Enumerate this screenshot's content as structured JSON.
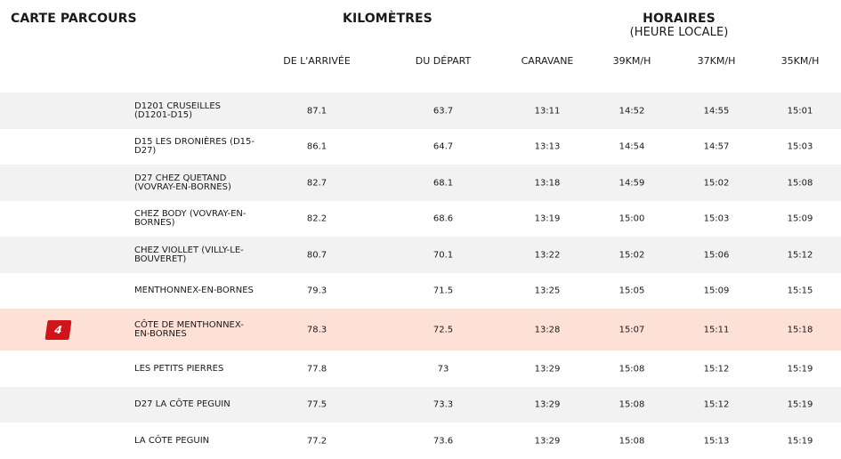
{
  "headers": {
    "carte": "CARTE PARCOURS",
    "kilometres": "KILOMÈTRES",
    "horaires": "HORAIRES",
    "horaires_sub": "(HEURE LOCALE)"
  },
  "columns": {
    "arrivee": "DE L'ARRIVÉE",
    "depart": "DU DÉPART",
    "caravane": "CARAVANE",
    "s39": "39KM/H",
    "s37": "37KM/H",
    "s35": "35KM/H"
  },
  "rows": [
    {
      "badge": "",
      "name": "D1201 CRUSEILLES (D1201-D15)",
      "arrivee": "87.1",
      "depart": "63.7",
      "caravane": "13:11",
      "s39": "14:52",
      "s37": "14:55",
      "s35": "15:01"
    },
    {
      "badge": "",
      "name": "D15 LES DRONIÈRES (D15-D27)",
      "arrivee": "86.1",
      "depart": "64.7",
      "caravane": "13:13",
      "s39": "14:54",
      "s37": "14:57",
      "s35": "15:03"
    },
    {
      "badge": "",
      "name": "D27 CHEZ QUETAND (VOVRAY-EN-BORNES)",
      "arrivee": "82.7",
      "depart": "68.1",
      "caravane": "13:18",
      "s39": "14:59",
      "s37": "15:02",
      "s35": "15:08"
    },
    {
      "badge": "",
      "name": "CHEZ BODY (VOVRAY-EN-BORNES)",
      "arrivee": "82.2",
      "depart": "68.6",
      "caravane": "13:19",
      "s39": "15:00",
      "s37": "15:03",
      "s35": "15:09"
    },
    {
      "badge": "",
      "name": "CHEZ VIOLLET (VILLY-LE-BOUVERET)",
      "arrivee": "80.7",
      "depart": "70.1",
      "caravane": "13:22",
      "s39": "15:02",
      "s37": "15:06",
      "s35": "15:12"
    },
    {
      "badge": "",
      "name": "MENTHONNEX-EN-BORNES",
      "arrivee": "79.3",
      "depart": "71.5",
      "caravane": "13:25",
      "s39": "15:05",
      "s37": "15:09",
      "s35": "15:15"
    },
    {
      "badge": "4",
      "name": "CÔTE DE MENTHONNEX-EN-BORNES",
      "arrivee": "78.3",
      "depart": "72.5",
      "caravane": "13:28",
      "s39": "15:07",
      "s37": "15:11",
      "s35": "15:18"
    },
    {
      "badge": "",
      "name": "LES PETITS PIERRES",
      "arrivee": "77.8",
      "depart": "73",
      "caravane": "13:29",
      "s39": "15:08",
      "s37": "15:12",
      "s35": "15:19"
    },
    {
      "badge": "",
      "name": "D27 LA CÔTE PEGUIN",
      "arrivee": "77.5",
      "depart": "73.3",
      "caravane": "13:29",
      "s39": "15:08",
      "s37": "15:12",
      "s35": "15:19"
    },
    {
      "badge": "",
      "name": "LA CÔTE PEGUIN",
      "arrivee": "77.2",
      "depart": "73.6",
      "caravane": "13:29",
      "s39": "15:08",
      "s37": "15:13",
      "s35": "15:19"
    }
  ]
}
